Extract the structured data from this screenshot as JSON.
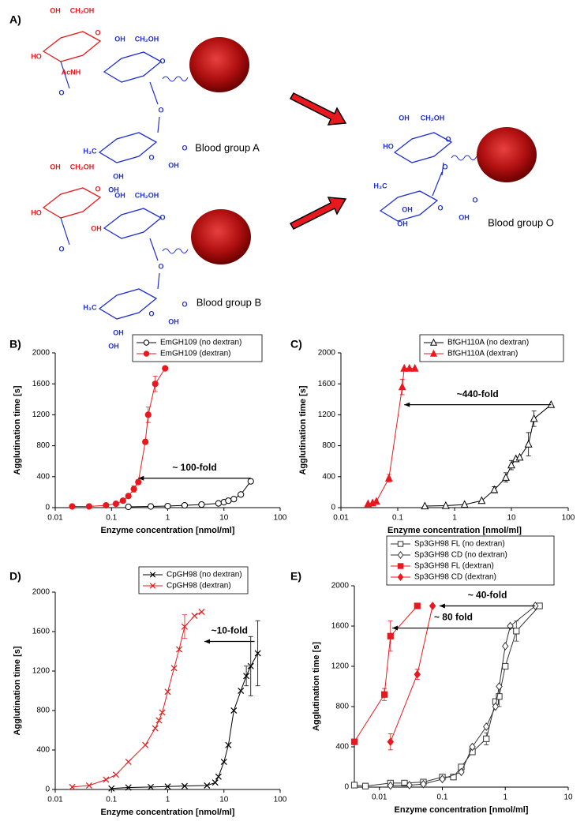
{
  "panel_a": {
    "label": "A)",
    "molecules": [
      {
        "caption": "Blood group A",
        "atoms": [
          {
            "text": "OH",
            "color": "#e8191e"
          },
          {
            "text": "CH₂OH",
            "color": "#e8191e"
          },
          {
            "text": "O",
            "color": "#e8191e"
          },
          {
            "text": "HO",
            "color": "#e8191e"
          },
          {
            "text": "AcNH",
            "color": "#e8191e"
          },
          {
            "text": "O",
            "color": "#1f2fd0"
          },
          {
            "text": "OH",
            "color": "#1f2fd0"
          },
          {
            "text": "CH₂OH",
            "color": "#1f2fd0"
          },
          {
            "text": "O",
            "color": "#1f2fd0"
          },
          {
            "text": "O",
            "color": "#1f2fd0"
          },
          {
            "text": "H₃C",
            "color": "#1f2fd0"
          },
          {
            "text": "O",
            "color": "#1f2fd0"
          },
          {
            "text": "O",
            "color": "#1f2fd0"
          },
          {
            "text": "OH",
            "color": "#1f2fd0"
          },
          {
            "text": "OH",
            "color": "#1f2fd0"
          },
          {
            "text": "OH",
            "color": "#1f2fd0"
          }
        ]
      },
      {
        "caption": "Blood group B",
        "atoms": [
          {
            "text": "OH",
            "color": "#e8191e"
          },
          {
            "text": "CH₂OH",
            "color": "#e8191e"
          },
          {
            "text": "O",
            "color": "#e8191e"
          },
          {
            "text": "HO",
            "color": "#e8191e"
          },
          {
            "text": "OH",
            "color": "#e8191e"
          },
          {
            "text": "O",
            "color": "#1f2fd0"
          },
          {
            "text": "OH",
            "color": "#1f2fd0"
          },
          {
            "text": "CH₂OH",
            "color": "#1f2fd0"
          },
          {
            "text": "O",
            "color": "#1f2fd0"
          },
          {
            "text": "O",
            "color": "#1f2fd0"
          },
          {
            "text": "H₃C",
            "color": "#1f2fd0"
          },
          {
            "text": "O",
            "color": "#1f2fd0"
          },
          {
            "text": "O",
            "color": "#1f2fd0"
          },
          {
            "text": "OH",
            "color": "#1f2fd0"
          },
          {
            "text": "OH",
            "color": "#1f2fd0"
          },
          {
            "text": "OH",
            "color": "#1f2fd0"
          }
        ]
      },
      {
        "caption": "Blood group O",
        "atoms": [
          {
            "text": "OH",
            "color": "#1f2fd0"
          },
          {
            "text": "CH₂OH",
            "color": "#1f2fd0"
          },
          {
            "text": "O",
            "color": "#1f2fd0"
          },
          {
            "text": "HO",
            "color": "#1f2fd0"
          },
          {
            "text": "O",
            "color": "#1f2fd0"
          },
          {
            "text": "H₃C",
            "color": "#1f2fd0"
          },
          {
            "text": "O",
            "color": "#1f2fd0"
          },
          {
            "text": "O",
            "color": "#1f2fd0"
          },
          {
            "text": "OH",
            "color": "#1f2fd0"
          },
          {
            "text": "OH",
            "color": "#1f2fd0"
          },
          {
            "text": "OH",
            "color": "#1f2fd0"
          }
        ]
      }
    ]
  },
  "chart_data": [
    {
      "type": "scatter",
      "panel_label": "B)",
      "xlabel": "Enzyme concentration [nmol/ml]",
      "ylabel": "Agglutination time [s]",
      "log_x": true,
      "xlim": [
        0.01,
        100
      ],
      "ylim": [
        0,
        2000
      ],
      "xticks": [
        0.01,
        0.1,
        1,
        10,
        100
      ],
      "yticks": [
        0,
        400,
        800,
        1200,
        1600,
        2000
      ],
      "legend": "top",
      "series": [
        {
          "name": "EmGH109 (no dextran)",
          "color": "#000000",
          "marker": "circle",
          "filled": false,
          "x": [
            0.2,
            0.5,
            1,
            2,
            4,
            8,
            10,
            12,
            15,
            20,
            30
          ],
          "values": [
            10,
            15,
            20,
            30,
            40,
            55,
            70,
            90,
            110,
            170,
            340
          ],
          "errors": [
            null,
            null,
            null,
            null,
            null,
            10,
            15,
            10,
            20,
            20,
            20
          ]
        },
        {
          "name": "EmGH109 (dextran)",
          "color": "#e8191e",
          "marker": "circle",
          "filled": true,
          "x": [
            0.02,
            0.04,
            0.08,
            0.12,
            0.16,
            0.2,
            0.25,
            0.3,
            0.4,
            0.45,
            0.6,
            0.9
          ],
          "values": [
            15,
            15,
            30,
            50,
            90,
            150,
            240,
            330,
            850,
            1200,
            1600,
            1800
          ],
          "errors": [
            null,
            null,
            null,
            null,
            null,
            null,
            40,
            30,
            null,
            100,
            100,
            null
          ]
        }
      ],
      "annotations": [
        {
          "text": "~ 100-fold",
          "x": [
            30,
            0.3
          ],
          "y": 380
        }
      ]
    },
    {
      "type": "scatter",
      "panel_label": "C)",
      "xlabel": "Enzyme concentration [nmol/ml]",
      "ylabel": "Agglutination time [s]",
      "log_x": true,
      "xlim": [
        0.01,
        100
      ],
      "ylim": [
        0,
        2000
      ],
      "xticks": [
        0.01,
        0.1,
        1,
        10,
        100
      ],
      "yticks": [
        0,
        400,
        800,
        1200,
        1600,
        2000
      ],
      "legend": "top",
      "series": [
        {
          "name": "BfGH110A (no dextran)",
          "color": "#000000",
          "marker": "triangle",
          "filled": false,
          "x": [
            0.3,
            0.7,
            1.5,
            3,
            5,
            8,
            10,
            12,
            14,
            20,
            25,
            50
          ],
          "values": [
            20,
            25,
            40,
            90,
            230,
            390,
            550,
            630,
            650,
            820,
            1150,
            1330
          ],
          "errors": [
            null,
            null,
            null,
            null,
            40,
            60,
            60,
            null,
            null,
            150,
            100,
            null
          ]
        },
        {
          "name": "BfGH110A (dextran)",
          "color": "#e8191e",
          "marker": "triangle",
          "filled": true,
          "x": [
            0.03,
            0.036,
            0.042,
            0.07,
            0.12,
            0.13,
            0.16,
            0.2
          ],
          "values": [
            50,
            60,
            80,
            380,
            1560,
            1800,
            1800,
            1800
          ],
          "errors": [
            null,
            null,
            null,
            50,
            100,
            null,
            null,
            null
          ]
        }
      ],
      "annotations": [
        {
          "text": "~440-fold",
          "x": [
            50,
            0.13
          ],
          "y": 1330
        }
      ]
    },
    {
      "type": "scatter",
      "panel_label": "D)",
      "xlabel": "Enzyme concentration [nmol/ml]",
      "ylabel": "Agglutination time [s]",
      "log_x": true,
      "xlim": [
        0.01,
        100
      ],
      "ylim": [
        0,
        2000
      ],
      "xticks": [
        0.01,
        0.1,
        1,
        10,
        100
      ],
      "yticks": [
        0,
        400,
        800,
        1200,
        1600,
        2000
      ],
      "legend": "top",
      "series": [
        {
          "name": "CpGH98 (no dextran)",
          "color": "#000000",
          "marker": "x",
          "filled": false,
          "x": [
            0.1,
            0.2,
            0.5,
            1,
            2,
            5,
            7,
            8,
            10,
            12,
            15,
            20,
            25,
            30,
            40
          ],
          "values": [
            10,
            20,
            25,
            30,
            35,
            40,
            70,
            130,
            280,
            450,
            800,
            1000,
            1150,
            1250,
            1380
          ],
          "errors": [
            null,
            null,
            null,
            null,
            null,
            null,
            null,
            null,
            null,
            null,
            null,
            null,
            100,
            300,
            330
          ]
        },
        {
          "name": "CpGH98 (dextran)",
          "color": "#e8191e",
          "marker": "x",
          "filled": false,
          "x": [
            0.02,
            0.04,
            0.08,
            0.12,
            0.2,
            0.4,
            0.6,
            0.7,
            0.8,
            1,
            1.3,
            1.6,
            2,
            3,
            4
          ],
          "values": [
            25,
            40,
            100,
            150,
            280,
            450,
            620,
            700,
            780,
            990,
            1230,
            1420,
            1650,
            1760,
            1800
          ],
          "errors": [
            null,
            null,
            null,
            null,
            null,
            null,
            null,
            null,
            null,
            null,
            null,
            null,
            120,
            null,
            null
          ]
        }
      ],
      "annotations": [
        {
          "text": "~10-fold",
          "x": [
            35,
            4.5
          ],
          "y": 1500
        }
      ]
    },
    {
      "type": "scatter",
      "panel_label": "E)",
      "xlabel": "Enzyme concentration [nmol/ml]",
      "ylabel": "Agglutination time [s]",
      "log_x": true,
      "xlim": [
        0.004,
        10
      ],
      "ylim": [
        0,
        2000
      ],
      "xticks": [
        0.01,
        0.1,
        1,
        10
      ],
      "yticks": [
        0,
        400,
        800,
        1200,
        1600,
        2000
      ],
      "legend": "top",
      "series": [
        {
          "name": "Sp3GH98 FL (no dextran)",
          "color": "#333333",
          "marker": "square",
          "filled": false,
          "x": [
            0.004,
            0.006,
            0.015,
            0.025,
            0.05,
            0.1,
            0.15,
            0.2,
            0.3,
            0.5,
            0.7,
            0.8,
            1,
            1.5,
            3.5
          ],
          "values": [
            20,
            10,
            40,
            40,
            50,
            100,
            100,
            200,
            350,
            480,
            850,
            900,
            1200,
            1550,
            1800
          ],
          "errors": [
            null,
            null,
            null,
            null,
            null,
            null,
            null,
            null,
            null,
            60,
            null,
            100,
            null,
            100,
            null
          ]
        },
        {
          "name": "Sp3GH98 CD (no dextran)",
          "color": "#333333",
          "marker": "diamond",
          "filled": false,
          "x": [
            0.015,
            0.03,
            0.05,
            0.1,
            0.2,
            0.3,
            0.5,
            0.7,
            0.8,
            1,
            1.2,
            3
          ],
          "values": [
            15,
            20,
            30,
            80,
            150,
            400,
            600,
            800,
            1000,
            1400,
            1600,
            1800
          ],
          "errors": [
            null,
            null,
            null,
            null,
            null,
            null,
            null,
            null,
            null,
            null,
            null,
            null
          ]
        },
        {
          "name": "Sp3GH98 FL (dextran)",
          "color": "#e8191e",
          "marker": "square",
          "filled": true,
          "x": [
            0.004,
            0.012,
            0.015,
            0.04
          ],
          "values": [
            450,
            920,
            1500,
            1800
          ],
          "errors": [
            null,
            60,
            150,
            null
          ]
        },
        {
          "name": "Sp3GH98 CD (dextran)",
          "color": "#e8191e",
          "marker": "diamond",
          "filled": true,
          "x": [
            0.015,
            0.04,
            0.07
          ],
          "values": [
            450,
            1120,
            1800
          ],
          "errors": [
            80,
            50,
            null
          ]
        }
      ],
      "annotations": [
        {
          "text": "~ 40-fold",
          "x": [
            3,
            0.09
          ],
          "y": 1800
        },
        {
          "text": "~ 80 fold",
          "x": [
            1.4,
            0.016
          ],
          "y": 1580
        }
      ]
    }
  ]
}
